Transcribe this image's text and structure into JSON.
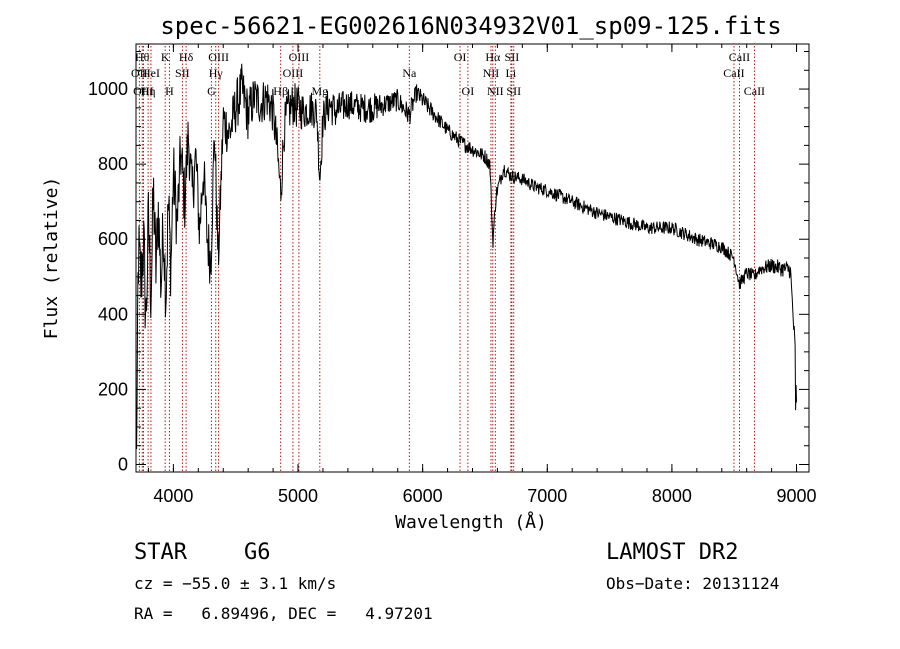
{
  "chart_data": {
    "type": "line",
    "title": "spec-56621-EG002616N034932V01_sp09-125.fits",
    "xlabel": "Wavelength (Å)",
    "ylabel": "Flux (relative)",
    "xlim": [
      3700,
      9100
    ],
    "ylim": [
      -20,
      1120
    ],
    "xticks": [
      4000,
      5000,
      6000,
      7000,
      8000,
      9000
    ],
    "yticks": [
      0,
      200,
      400,
      600,
      800,
      1000
    ],
    "grid": false,
    "line_color": "#000000",
    "marker_color": "#aa0000",
    "series": [
      {
        "x": [
          3700,
          3720,
          3740,
          3760,
          3780,
          3800,
          3820,
          3840,
          3860,
          3880,
          3900,
          3920,
          3940,
          3960,
          3980,
          4000,
          4030,
          4060,
          4090,
          4120,
          4150,
          4180,
          4210,
          4240,
          4270,
          4300,
          4330,
          4360,
          4400,
          4450,
          4500,
          4550,
          4600,
          4650,
          4700,
          4750,
          4800,
          4830,
          4861,
          4890,
          4920,
          4960,
          5000,
          5050,
          5100,
          5150,
          5175,
          5200,
          5250,
          5300,
          5400,
          5500,
          5600,
          5700,
          5800,
          5893,
          5950,
          6000,
          6100,
          6200,
          6300,
          6400,
          6500,
          6540,
          6563,
          6590,
          6650,
          6700,
          6800,
          6900,
          7000,
          7200,
          7400,
          7600,
          7800,
          8000,
          8200,
          8400,
          8498,
          8542,
          8600,
          8662,
          8700,
          8800,
          8900,
          8950,
          9000
        ],
        "y": [
          100,
          560,
          480,
          600,
          380,
          650,
          450,
          720,
          520,
          690,
          470,
          640,
          450,
          700,
          520,
          780,
          640,
          830,
          700,
          880,
          720,
          820,
          620,
          790,
          610,
          540,
          890,
          540,
          920,
          880,
          950,
          1000,
          930,
          980,
          960,
          980,
          940,
          850,
          720,
          900,
          940,
          960,
          950,
          940,
          950,
          940,
          760,
          920,
          960,
          940,
          960,
          950,
          950,
          960,
          970,
          930,
          990,
          970,
          930,
          890,
          860,
          840,
          820,
          800,
          590,
          720,
          790,
          770,
          760,
          740,
          730,
          700,
          670,
          650,
          630,
          630,
          600,
          580,
          550,
          480,
          510,
          500,
          520,
          530,
          520,
          520,
          240
        ],
        "noise": [
          40,
          120,
          120,
          120,
          120,
          110,
          110,
          110,
          100,
          100,
          100,
          100,
          100,
          100,
          100,
          90,
          90,
          90,
          90,
          80,
          80,
          80,
          80,
          80,
          80,
          80,
          70,
          70,
          70,
          70,
          70,
          70,
          70,
          60,
          60,
          60,
          60,
          60,
          60,
          60,
          60,
          60,
          60,
          50,
          50,
          50,
          50,
          50,
          50,
          50,
          40,
          40,
          40,
          30,
          30,
          30,
          25,
          25,
          22,
          20,
          20,
          20,
          20,
          20,
          20,
          20,
          20,
          18,
          18,
          18,
          18,
          18,
          18,
          18,
          18,
          18,
          18,
          18,
          18,
          18,
          18,
          18,
          18,
          20,
          22,
          25,
          30
        ]
      }
    ],
    "lines": [
      {
        "label": "OII",
        "x": 3727,
        "row": 2
      },
      {
        "label": "Hθ",
        "x": 3750,
        "row": 1
      },
      {
        "label": "OIII",
        "x": 3760,
        "row": 3
      },
      {
        "label": "Hη",
        "x": 3797,
        "row": 3
      },
      {
        "label": "HeI",
        "x": 3820,
        "row": 2
      },
      {
        "label": "K",
        "x": 3934,
        "row": 1
      },
      {
        "label": "H",
        "x": 3968,
        "row": 3
      },
      {
        "label": "SII",
        "x": 4072,
        "row": 2
      },
      {
        "label": "Hδ",
        "x": 4102,
        "row": 1
      },
      {
        "label": "Hγ",
        "x": 4340,
        "row": 2
      },
      {
        "label": "OIII",
        "x": 4363,
        "row": 1
      },
      {
        "label": "G",
        "x": 4305,
        "row": 3
      },
      {
        "label": "Hβ",
        "x": 4861,
        "row": 3
      },
      {
        "label": "OIII",
        "x": 4959,
        "row": 2
      },
      {
        "label": "OIII",
        "x": 5007,
        "row": 1
      },
      {
        "label": "Mg",
        "x": 5175,
        "row": 3
      },
      {
        "label": "Na",
        "x": 5893,
        "row": 2
      },
      {
        "label": "OI",
        "x": 6300,
        "row": 1
      },
      {
        "label": "OI",
        "x": 6363,
        "row": 3
      },
      {
        "label": "NII",
        "x": 6548,
        "row": 2
      },
      {
        "label": "Hα",
        "x": 6563,
        "row": 1
      },
      {
        "label": "NII",
        "x": 6583,
        "row": 3
      },
      {
        "label": "Li",
        "x": 6708,
        "row": 2
      },
      {
        "label": "SII",
        "x": 6716,
        "row": 1
      },
      {
        "label": "SII",
        "x": 6731,
        "row": 3
      },
      {
        "label": "CaII",
        "x": 8498,
        "row": 2
      },
      {
        "label": "CaII",
        "x": 8542,
        "row": 1
      },
      {
        "label": "CaII",
        "x": 8662,
        "row": 3
      }
    ]
  },
  "info": {
    "class": "STAR",
    "subclass": "G6",
    "survey": "LAMOST DR2",
    "cz": "cz = −55.0 ± 3.1 km/s",
    "obs_date": "Obs−Date: 20131124",
    "coords": "RA =   6.89496, DEC =   4.97201"
  }
}
